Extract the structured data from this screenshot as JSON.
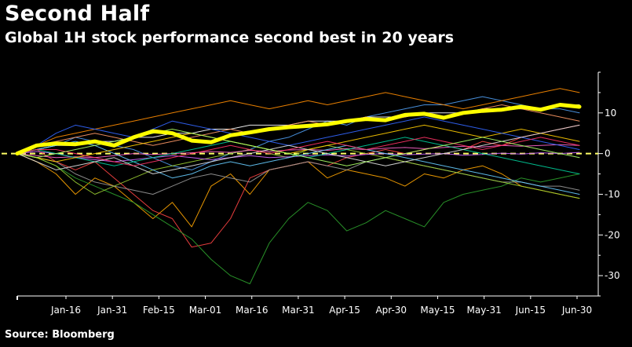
{
  "header": {
    "title": "Second Half",
    "subtitle": "Global 1H stock performance second best in 20 years"
  },
  "footer": {
    "source": "Source: Bloomberg"
  },
  "colors": {
    "background": "#000000",
    "highlight": "#ffff00",
    "zero_line": "#ffff66",
    "axis": "#ffffff"
  },
  "chart_data": {
    "type": "line",
    "title": "",
    "xlabel": "",
    "ylabel": "",
    "x_tick_labels": [
      "Jan-16",
      "Jan-31",
      "Feb-15",
      "Mar-01",
      "Mar-16",
      "Mar-31",
      "Apr-15",
      "Apr-30",
      "May-15",
      "May-31",
      "Jun-15",
      "Jun-30"
    ],
    "y_ticks": [
      10,
      0,
      -10,
      -20,
      -30
    ],
    "ylim": [
      -35,
      20
    ],
    "xlim": [
      "Jan-01",
      "Jun-30"
    ],
    "y_axis_position": "right",
    "zero_reference_line": "dashed",
    "grid": false,
    "legend": "none",
    "series": [
      {
        "color": "#ffff00",
        "highlight": true,
        "values": [
          0,
          2,
          2.5,
          2.3,
          3,
          2,
          4,
          5.5,
          5,
          3.2,
          2.8,
          4.5,
          5.2,
          6,
          6.5,
          6.8,
          7.2,
          8,
          8.5,
          8.2,
          9.5,
          9.8,
          8.8,
          10,
          10.5,
          10.8,
          11.5,
          10.8,
          12,
          11.5
        ]
      },
      {
        "color": "#ffa500",
        "values": [
          0,
          -2,
          -5,
          -10,
          -6,
          -8,
          -12,
          -16,
          -12,
          -18,
          -8,
          -5,
          -10,
          -4,
          -3,
          -2,
          -6,
          -4,
          -5,
          -6,
          -8,
          -5,
          -6,
          -4,
          -3,
          -5,
          -8,
          -9,
          -10,
          -11
        ]
      },
      {
        "color": "#ff4444",
        "values": [
          0,
          1,
          -2,
          -4,
          -2,
          -6,
          -10,
          -14,
          -16,
          -23,
          -22,
          -16,
          -6,
          -4,
          -3,
          -2,
          -3,
          -1,
          0,
          1,
          0,
          1,
          2,
          1,
          3,
          2,
          4,
          5,
          6,
          7
        ]
      },
      {
        "color": "#2ca02c",
        "values": [
          0,
          -1,
          -3,
          -6,
          -8,
          -10,
          -12,
          -15,
          -18,
          -21,
          -26,
          -30,
          -32,
          -22,
          -16,
          -12,
          -14,
          -19,
          -17,
          -14,
          -16,
          -18,
          -12,
          -10,
          -9,
          -8,
          -6,
          -7,
          -6,
          -5
        ]
      },
      {
        "color": "#4f9cf0",
        "values": [
          0,
          1,
          2,
          4,
          3,
          2,
          1,
          -1,
          -3,
          -4,
          -2,
          0,
          1,
          3,
          4,
          6,
          8,
          7,
          9,
          10,
          11,
          12,
          12,
          13,
          14,
          13,
          12,
          11,
          11,
          10
        ]
      },
      {
        "color": "#ff8c00",
        "values": [
          0,
          2,
          4,
          5,
          6,
          7,
          8,
          9,
          10,
          11,
          12,
          13,
          12,
          11,
          12,
          13,
          12,
          13,
          14,
          15,
          14,
          13,
          12,
          11,
          12,
          13,
          14,
          15,
          16,
          15
        ]
      },
      {
        "color": "#ffffff",
        "values": [
          0,
          1,
          2,
          2,
          3,
          3,
          4,
          4,
          5,
          5,
          6,
          6,
          7,
          7,
          7,
          8,
          8,
          8,
          9,
          9,
          9,
          10,
          10,
          10,
          11,
          11,
          11,
          11,
          12,
          12
        ]
      },
      {
        "color": "#999999",
        "values": [
          0,
          -1,
          -2,
          -5,
          -7,
          -8,
          -9,
          -10,
          -8,
          -6,
          -5,
          -6,
          -7,
          -4,
          -3,
          -2,
          -3,
          -4,
          -2,
          -1,
          -2,
          -3,
          -4,
          -5,
          -6,
          -7,
          -7,
          -8,
          -8,
          -9
        ]
      },
      {
        "color": "#9acd32",
        "values": [
          0,
          -1,
          -3,
          -7,
          -10,
          -8,
          -6,
          -4,
          -3,
          -2,
          -1,
          0,
          1,
          0,
          -1,
          1,
          2,
          1,
          0,
          -1,
          -2,
          -3,
          -4,
          -5,
          -6,
          -7,
          -8,
          -9,
          -10,
          -11
        ]
      },
      {
        "color": "#ff66cc",
        "values": [
          0,
          -0.5,
          -1,
          -0.8,
          -1,
          -0.5,
          0,
          -0.2,
          0,
          0.2,
          0.5,
          0.3,
          0.8,
          0.5,
          0.9,
          1,
          0.8,
          1.2,
          1,
          1.3,
          1.5,
          1.2,
          1.5,
          1.8,
          1.6,
          2,
          1.8,
          2,
          2.2,
          2
        ]
      },
      {
        "color": "#cc66ff",
        "values": [
          0,
          0.5,
          0,
          -1,
          -1.5,
          -2,
          -1.5,
          -1,
          -0.5,
          -1,
          -1.5,
          -1,
          -0.5,
          -1,
          -0.8,
          -0.5,
          -0.3,
          -0.6,
          -0.2,
          0,
          -0.3,
          -0.1,
          0,
          -0.4,
          -0.2,
          0.1,
          -0.1,
          0.2,
          0,
          0.3
        ]
      },
      {
        "color": "#66ccff",
        "values": [
          0,
          1,
          2,
          3,
          2,
          0,
          -2,
          -4,
          -6,
          -5,
          -3,
          -2,
          -3,
          -2,
          -1,
          0,
          1,
          2,
          1,
          0,
          -1,
          -2,
          -3,
          -4,
          -5,
          -6,
          -7,
          -8,
          -9,
          -10
        ]
      },
      {
        "color": "#ff9966",
        "values": [
          0,
          2,
          3,
          4,
          5,
          4,
          3,
          2,
          3,
          4,
          5,
          6,
          5,
          6,
          7,
          8,
          7,
          8,
          9,
          8,
          9,
          10,
          9,
          10,
          11,
          12,
          11,
          10,
          9,
          8
        ]
      },
      {
        "color": "#00cc99",
        "values": [
          0,
          1,
          0,
          -1,
          -2,
          -3,
          -2,
          -1,
          0,
          1,
          2,
          3,
          2,
          1,
          0,
          -1,
          0,
          1,
          2,
          3,
          4,
          3,
          2,
          1,
          0,
          -1,
          -2,
          -3,
          -4,
          -5
        ]
      },
      {
        "color": "#ffcc00",
        "values": [
          0,
          -1,
          -2,
          -1,
          0,
          1,
          2,
          3,
          4,
          5,
          4,
          3,
          2,
          1,
          0,
          1,
          2,
          3,
          4,
          5,
          6,
          7,
          6,
          5,
          4,
          5,
          6,
          5,
          4,
          3
        ]
      },
      {
        "color": "#3366ff",
        "values": [
          0,
          2,
          5,
          7,
          6,
          5,
          4,
          6,
          8,
          7,
          6,
          5,
          4,
          3,
          2,
          3,
          4,
          5,
          6,
          7,
          8,
          9,
          8,
          7,
          6,
          5,
          4,
          3,
          2,
          1
        ]
      },
      {
        "color": "#e0e0e0",
        "values": [
          0,
          -2,
          -4,
          -3,
          -2,
          -1,
          -3,
          -5,
          -4,
          -3,
          -2,
          -1,
          0,
          1,
          2,
          1,
          0,
          -1,
          -2,
          -3,
          -2,
          -1,
          0,
          1,
          2,
          3,
          4,
          5,
          6,
          7
        ]
      },
      {
        "color": "#ff3366",
        "values": [
          0,
          1,
          1,
          0,
          -1,
          -2,
          -3,
          -2,
          -1,
          0,
          1,
          2,
          1,
          0,
          1,
          2,
          3,
          2,
          1,
          2,
          3,
          4,
          3,
          2,
          1,
          2,
          3,
          4,
          3,
          2
        ]
      },
      {
        "color": "#aaff66",
        "values": [
          0,
          -1,
          0,
          1,
          2,
          3,
          4,
          5,
          6,
          5,
          4,
          3,
          2,
          1,
          0,
          -1,
          -2,
          -3,
          -2,
          -1,
          0,
          1,
          2,
          3,
          4,
          3,
          2,
          1,
          0,
          -1
        ]
      }
    ]
  }
}
